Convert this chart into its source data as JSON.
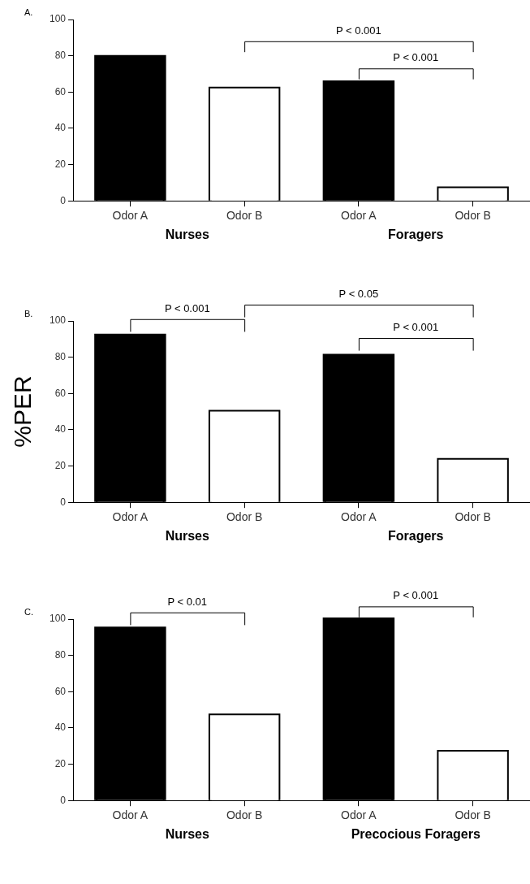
{
  "chart_data": [
    {
      "type": "bar",
      "title": "A.",
      "categories": [
        "Odor A",
        "Odor B",
        "Odor A",
        "Odor B"
      ],
      "values": [
        79.5,
        62,
        65.5,
        7
      ],
      "colors": [
        "#000000",
        "#ffffff",
        "#000000",
        "#ffffff"
      ],
      "ylim": [
        0,
        100
      ],
      "yticks": [
        0,
        20,
        40,
        60,
        80,
        100
      ],
      "grid": false,
      "annotations": [
        "Nurses",
        "Foragers",
        "P < 0.001",
        "P < 0.001"
      ]
    },
    {
      "type": "bar",
      "title": "B.",
      "ylabel": "%PER",
      "categories": [
        "Odor A",
        "Odor B",
        "Odor A",
        "Odor B"
      ],
      "values": [
        92,
        50,
        81,
        23.5
      ],
      "colors": [
        "#000000",
        "#ffffff",
        "#000000",
        "#ffffff"
      ],
      "ylim": [
        0,
        100
      ],
      "yticks": [
        0,
        20,
        40,
        60,
        80,
        100
      ],
      "grid": false,
      "annotations": [
        "Nurses",
        "Foragers",
        "P < 0.001",
        "P < 0.05",
        "P < 0.001"
      ]
    },
    {
      "type": "bar",
      "title": "C.",
      "categories": [
        "Odor A",
        "Odor B",
        "Odor A",
        "Odor B"
      ],
      "values": [
        95,
        47,
        100,
        27
      ],
      "colors": [
        "#000000",
        "#ffffff",
        "#000000",
        "#ffffff"
      ],
      "ylim": [
        0,
        100
      ],
      "yticks": [
        0,
        20,
        40,
        60,
        80,
        100
      ],
      "grid": false,
      "annotations": [
        "Nurses",
        "Precocious Foragers",
        "P < 0.01",
        "P < 0.001"
      ]
    }
  ]
}
